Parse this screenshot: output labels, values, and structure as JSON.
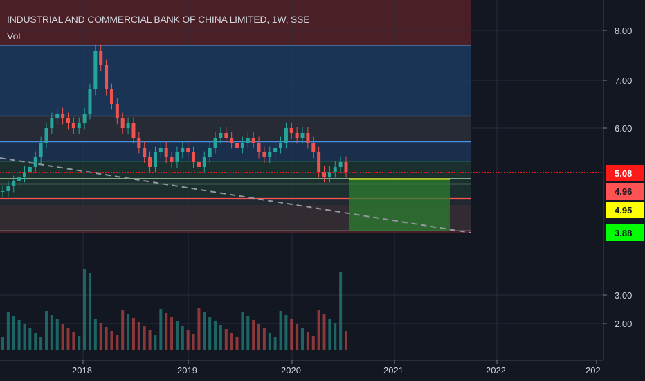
{
  "header": {
    "title": "INDUSTRIAL AND COMMERCIAL BANK OF CHINA LIMITED, 1W, SSE",
    "volume_label": "Vol"
  },
  "price_axis": {
    "ticks": [
      "8.00",
      "7.00",
      "6.00",
      "3.00",
      "2.00"
    ]
  },
  "time_axis": {
    "ticks": [
      "2018",
      "2019",
      "2020",
      "2021",
      "2022",
      "202"
    ]
  },
  "price_tags": [
    {
      "label": "5.08",
      "bg": "#ff1a1a",
      "fg": "#ffffff"
    },
    {
      "label": "4.96",
      "bg": "#ff5252",
      "fg": "#131722"
    },
    {
      "label": "4.95",
      "bg": "#ffff00",
      "fg": "#131722"
    },
    {
      "label": "3.88",
      "bg": "#00ff00",
      "fg": "#131722"
    }
  ],
  "colors": {
    "background": "#131722",
    "up": "#26a69a",
    "down": "#ef5350",
    "fib_blue": "#4a90e2",
    "fib_red": "#ff5252",
    "fib_teal": "#26a69a",
    "target_green": "#2e7d32",
    "gridline": "#2a2e39"
  },
  "chart_data": {
    "type": "candlestick",
    "symbol": "INDUSTRIAL AND COMMERCIAL BANK OF CHINA LIMITED",
    "interval": "1W",
    "exchange": "SSE",
    "x_ticks": [
      "2018",
      "2019",
      "2020",
      "2021",
      "2022"
    ],
    "y_ticks": [
      8.0,
      7.0,
      6.0,
      3.0,
      2.0
    ],
    "price_levels": [
      7.7,
      6.25,
      5.72,
      5.32,
      5.08,
      4.96,
      4.95,
      4.55,
      3.88
    ],
    "current_price": 5.08,
    "projection_entry": 4.95,
    "projection_target": 3.88,
    "close_series": [
      4.7,
      4.8,
      4.9,
      5.0,
      5.1,
      5.2,
      5.4,
      5.7,
      6.0,
      6.2,
      6.3,
      6.2,
      6.1,
      6.0,
      6.1,
      6.3,
      6.8,
      7.6,
      7.3,
      6.8,
      6.5,
      6.2,
      6.0,
      6.1,
      5.8,
      5.6,
      5.4,
      5.2,
      5.5,
      5.6,
      5.4,
      5.3,
      5.5,
      5.6,
      5.5,
      5.3,
      5.2,
      5.4,
      5.6,
      5.8,
      5.9,
      5.8,
      5.7,
      5.6,
      5.7,
      5.8,
      5.7,
      5.5,
      5.4,
      5.5,
      5.6,
      5.7,
      6.0,
      5.9,
      5.8,
      5.9,
      5.7,
      5.5,
      5.1,
      5.0,
      5.1,
      5.2,
      5.3,
      5.1
    ]
  }
}
